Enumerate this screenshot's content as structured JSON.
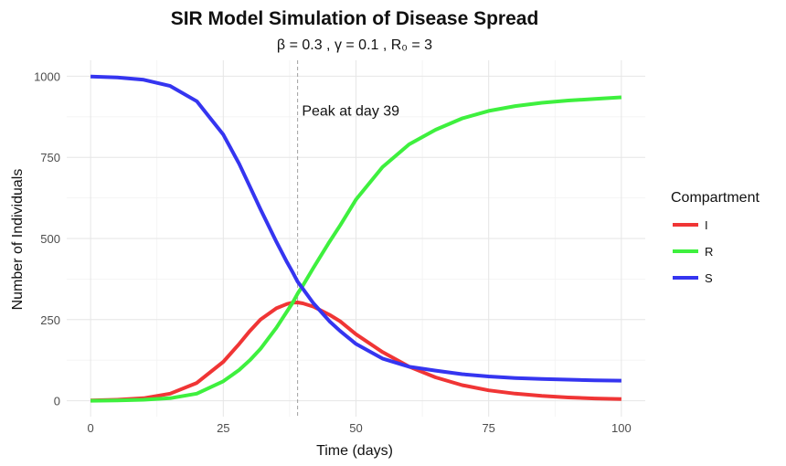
{
  "chart_data": {
    "type": "line",
    "title": "SIR Model Simulation of Disease Spread",
    "subtitle": "β = 0.3 , γ = 0.1 , R₀ = 3",
    "xlabel": "Time (days)",
    "ylabel": "Number of Individuals",
    "xlim": [
      -4.5,
      104.5
    ],
    "ylim": [
      -49,
      1049
    ],
    "x_ticks": [
      0,
      25,
      50,
      75,
      100
    ],
    "y_ticks": [
      0,
      250,
      500,
      750,
      1000
    ],
    "x_tick_labels": [
      "0",
      "25",
      "50",
      "75",
      "100"
    ],
    "y_tick_labels": [
      "0",
      "250",
      "500",
      "750",
      "1000"
    ],
    "grid": true,
    "legend": {
      "title": "Compartment",
      "position": "right"
    },
    "x": [
      0,
      5,
      10,
      15,
      20,
      25,
      28,
      30,
      32,
      35,
      37,
      38,
      39,
      40,
      42,
      45,
      47,
      50,
      55,
      60,
      65,
      70,
      75,
      80,
      85,
      90,
      95,
      100
    ],
    "series": [
      {
        "name": "I",
        "color": "#f03535",
        "values": [
          1,
          3,
          8,
          22,
          55,
          120,
          175,
          215,
          250,
          285,
          298,
          302,
          303,
          300,
          290,
          265,
          245,
          205,
          150,
          105,
          72,
          48,
          32,
          22,
          15,
          10,
          7,
          5
        ]
      },
      {
        "name": "R",
        "color": "#3ef03e",
        "values": [
          0,
          1,
          3,
          8,
          22,
          60,
          95,
          125,
          160,
          225,
          275,
          300,
          330,
          355,
          410,
          490,
          540,
          620,
          720,
          790,
          835,
          870,
          893,
          908,
          918,
          925,
          930,
          935
        ]
      },
      {
        "name": "S",
        "color": "#3535f0",
        "values": [
          999,
          996,
          989,
          970,
          923,
          820,
          730,
          660,
          590,
          490,
          427,
          398,
          367,
          345,
          300,
          245,
          215,
          175,
          130,
          105,
          93,
          82,
          75,
          70,
          67,
          65,
          63,
          62
        ]
      }
    ],
    "annotations": [
      {
        "type": "vline",
        "x": 39,
        "color": "#a0a0a0",
        "style": "dashed"
      },
      {
        "type": "text",
        "x": 49,
        "y": 895,
        "text": "Peak at day 39"
      }
    ]
  }
}
